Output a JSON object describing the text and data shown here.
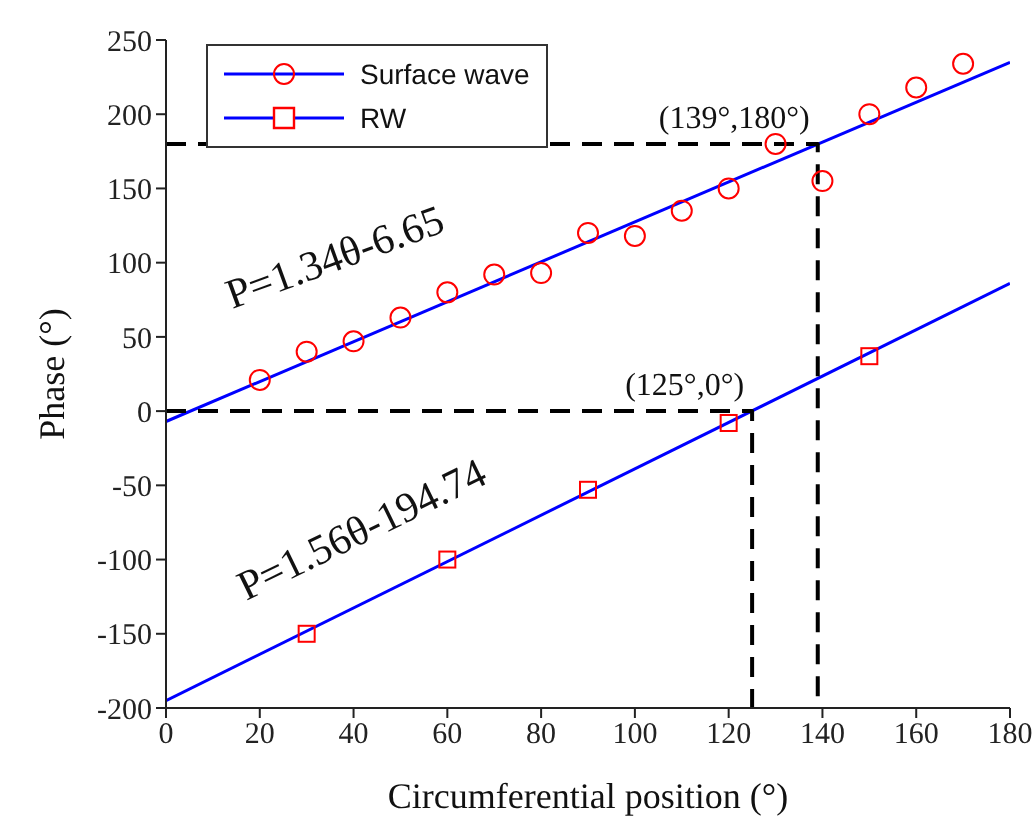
{
  "chart_data": {
    "type": "scatter",
    "xlabel": "Circumferential position (°)",
    "ylabel": "Phase (°)",
    "xlim": [
      0,
      180
    ],
    "xticks": [
      0,
      20,
      40,
      60,
      80,
      100,
      120,
      140,
      160,
      180
    ],
    "ylim": [
      -200,
      250
    ],
    "yticks": [
      -200,
      -150,
      -100,
      -50,
      0,
      50,
      100,
      150,
      200,
      250
    ],
    "grid": false,
    "legend": "top left",
    "series": [
      {
        "name": "Surface wave",
        "marker": "circle",
        "color": "#ff0000",
        "x": [
          20,
          30,
          40,
          50,
          60,
          70,
          80,
          90,
          100,
          110,
          120,
          130,
          140,
          150,
          160,
          170
        ],
        "values": [
          21,
          40,
          47,
          63,
          80,
          92,
          93,
          120,
          118,
          135,
          150,
          180,
          155,
          200,
          218,
          234
        ]
      },
      {
        "type": "line",
        "color": "#0000ff",
        "line_style": "solid",
        "x": [
          0,
          180
        ],
        "values": [
          -7,
          235
        ]
      },
      {
        "name": "RW",
        "marker": "square",
        "color": "#ff0000",
        "x": [
          30,
          60,
          90,
          120,
          150
        ],
        "values": [
          -150,
          -100,
          -53,
          -8,
          37
        ]
      },
      {
        "type": "line",
        "color": "#0000ff",
        "line_style": "solid",
        "x": [
          0,
          180
        ],
        "values": [
          -195,
          86
        ]
      },
      {
        "type": "line",
        "color": "#000000",
        "line_style": "dashed",
        "x": [
          0,
          139,
          139
        ],
        "values": [
          180,
          180,
          -200
        ]
      },
      {
        "type": "line",
        "color": "#000000",
        "line_style": "dashed",
        "x": [
          0,
          125,
          125
        ],
        "values": [
          0,
          0,
          -200
        ]
      }
    ],
    "annotations": [
      {
        "text": "(139°,180°)",
        "x": 139,
        "y": 180
      },
      {
        "text": "(125°,0°)",
        "x": 125,
        "y": 0
      },
      "P=1.34θ-6.65",
      "P=1.56θ-194.74"
    ]
  }
}
